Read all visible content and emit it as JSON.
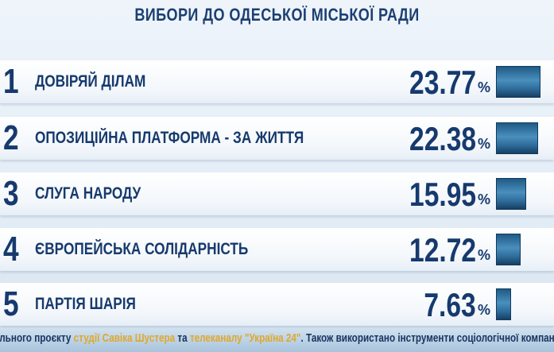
{
  "chart_data": {
    "type": "bar",
    "title": "ВИБОРИ ДО ОДЕСЬКОЇ МІСЬКОЇ РАДИ",
    "unit": "%",
    "ranks": [
      "1",
      "2",
      "3",
      "4",
      "5"
    ],
    "categories": [
      "ДОВІРЯЙ ДІЛАМ",
      "ОПОЗИЦІЙНА ПЛАТФОРМА - ЗА ЖИТТЯ",
      "СЛУГА НАРОДУ",
      "ЄВРОПЕЙСЬКА СОЛІДАРНІСТЬ",
      "ПАРТІЯ ШАРІЯ"
    ],
    "values": [
      23.77,
      22.38,
      15.95,
      12.72,
      7.63
    ],
    "value_labels": [
      "23.77",
      "22.38",
      "15.95",
      "12.72",
      "7.63"
    ],
    "bar_color": "#2c6a98"
  },
  "ticker": {
    "part1": "ільного проєкту ",
    "part2": "студії Савіка Шустера",
    "part3": " та ",
    "part4": "телеканалу \"Україна 24\"",
    "part5": ". Також використано інструменти соціологічної компанії"
  }
}
